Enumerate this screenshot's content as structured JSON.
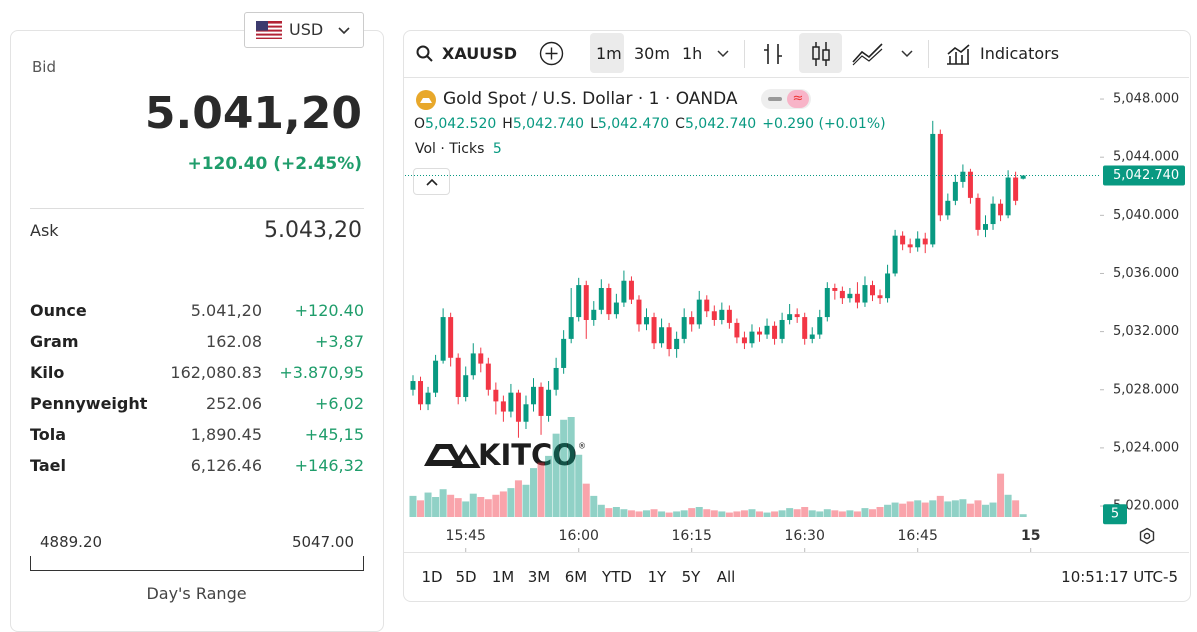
{
  "currency": "USD",
  "quote": {
    "bid_label": "Bid",
    "bid": "5.041,20",
    "change": "+120.40 (+2.45%)",
    "ask_label": "Ask",
    "ask": "5.043,20"
  },
  "units": [
    [
      "Ounce",
      "5.041,20",
      "+120.40"
    ],
    [
      "Gram",
      "162.08",
      "+3,87"
    ],
    [
      "Kilo",
      "162,080.83",
      "+3.870,95"
    ],
    [
      "Pennyweight",
      "252.06",
      "+6,02"
    ],
    [
      "Tola",
      "1,890.45",
      "+45,15"
    ],
    [
      "Tael",
      "6,126.46",
      "+146,32"
    ]
  ],
  "range": {
    "low": "4889.20",
    "high": "5047.00",
    "label": "Day's Range"
  },
  "toolbar": {
    "symbol": "XAUUSD",
    "intervals": [
      "1m",
      "30m",
      "1h"
    ],
    "indicators": "Indicators"
  },
  "legend": {
    "title": "Gold Spot / U.S. Dollar · 1 · OANDA",
    "ohlc": [
      [
        "O",
        "5,042.520"
      ],
      [
        "H",
        "5,042.740"
      ],
      [
        "L",
        "5,042.470"
      ],
      [
        "C",
        "5,042.740"
      ]
    ],
    "change": "+0.290 (+0.01%)",
    "volume_label": "Vol · Ticks",
    "volume": "5"
  },
  "watermark": "KITCO",
  "periods": [
    "1D",
    "5D",
    "1M",
    "3M",
    "6M",
    "YTD",
    "1Y",
    "5Y",
    "All"
  ],
  "clock": "10:51:17 UTC-5",
  "chart_data": {
    "type": "candlestick",
    "open": [
      5028.0,
      5028.6,
      5027.0,
      5027.8,
      5030.0,
      5033.0,
      5030.2,
      5027.5,
      5029.0,
      5030.5,
      5029.8,
      5028.0,
      5027.2,
      5026.5,
      5027.8,
      5025.8,
      5027.0,
      5028.2,
      5026.2,
      5028.0,
      5029.5,
      5031.5,
      5033.0,
      5035.2,
      5032.8,
      5033.5,
      5035.0,
      5033.2,
      5034.0,
      5035.5,
      5034.2,
      5032.5,
      5033.0,
      5031.2,
      5032.3,
      5030.8,
      5031.5,
      5033.0,
      5032.5,
      5034.2,
      5033.4,
      5032.8,
      5033.5,
      5032.6,
      5031.6,
      5031.2,
      5032.0,
      5031.8,
      5032.4,
      5031.5,
      5032.8,
      5033.2,
      5033.0,
      5031.5,
      5031.8,
      5033.0,
      5035.0,
      5034.8,
      5034.3,
      5034.6,
      5034.0,
      5035.2,
      5034.5,
      5034.3,
      5036.0,
      5038.6,
      5038.0,
      5037.8,
      5038.4,
      5038.0,
      5045.6,
      5040.0,
      5041.0,
      5042.3,
      5043.0,
      5041.2,
      5039.0,
      5039.4,
      5040.8,
      5040.0,
      5042.6,
      5042.52
    ],
    "high": [
      5029.0,
      5028.9,
      5028.2,
      5030.4,
      5033.6,
      5033.3,
      5030.5,
      5029.6,
      5031.2,
      5030.9,
      5030.2,
      5028.5,
      5027.6,
      5028.4,
      5028.0,
      5027.6,
      5028.8,
      5028.5,
      5028.6,
      5030.2,
      5032.1,
      5035.0,
      5035.7,
      5035.5,
      5034.1,
      5035.6,
      5035.3,
      5034.6,
      5036.2,
      5035.8,
      5034.5,
      5033.6,
      5033.3,
      5032.9,
      5032.6,
      5032.0,
      5033.6,
      5033.4,
      5034.8,
      5034.5,
      5033.8,
      5034.0,
      5033.8,
      5032.9,
      5032.0,
      5032.5,
      5032.3,
      5032.9,
      5032.7,
      5033.3,
      5033.9,
      5033.6,
      5033.3,
      5032.3,
      5033.5,
      5035.4,
      5035.3,
      5035.1,
      5035.0,
      5035.4,
      5035.8,
      5035.5,
      5034.9,
      5036.6,
      5039.0,
      5038.9,
      5038.4,
      5038.9,
      5038.8,
      5046.5,
      5045.9,
      5041.5,
      5042.8,
      5043.5,
      5043.2,
      5041.5,
      5040.0,
      5041.3,
      5041.1,
      5043.1,
      5043.0,
      5042.74
    ],
    "low": [
      5027.6,
      5026.6,
      5026.6,
      5027.5,
      5029.8,
      5029.6,
      5027.0,
      5027.2,
      5028.7,
      5029.2,
      5027.6,
      5026.3,
      5025.8,
      5026.1,
      5024.7,
      5025.3,
      5026.5,
      5024.9,
      5025.8,
      5027.6,
      5029.1,
      5031.2,
      5032.7,
      5031.5,
      5032.4,
      5033.2,
      5032.8,
      5032.9,
      5033.7,
      5033.9,
      5032.0,
      5032.1,
      5030.8,
      5030.9,
      5030.3,
      5030.2,
      5031.2,
      5032.0,
      5032.2,
      5033.0,
      5032.4,
      5032.5,
      5032.2,
      5031.2,
      5030.8,
      5030.9,
      5031.3,
      5031.5,
      5031.1,
      5031.2,
      5032.5,
      5032.6,
      5031.1,
      5031.2,
      5031.5,
      5032.7,
      5034.2,
      5033.9,
      5034.0,
      5033.6,
      5033.7,
      5034.1,
      5033.9,
      5034.0,
      5035.8,
      5037.6,
      5037.4,
      5037.5,
      5037.4,
      5037.8,
      5039.6,
      5039.7,
      5040.7,
      5041.9,
      5040.8,
      5038.6,
      5038.5,
      5039.0,
      5039.6,
      5039.8,
      5040.7,
      5042.47
    ],
    "close": [
      5028.6,
      5027.0,
      5027.8,
      5030.0,
      5033.0,
      5030.2,
      5027.5,
      5029.0,
      5030.5,
      5029.8,
      5028.0,
      5027.2,
      5026.5,
      5027.8,
      5025.8,
      5027.0,
      5028.2,
      5026.2,
      5028.0,
      5029.5,
      5031.5,
      5033.0,
      5035.2,
      5032.8,
      5033.5,
      5035.0,
      5033.2,
      5034.0,
      5035.5,
      5034.2,
      5032.5,
      5033.0,
      5031.2,
      5032.3,
      5030.8,
      5031.5,
      5033.0,
      5032.5,
      5034.2,
      5033.4,
      5032.8,
      5033.5,
      5032.6,
      5031.6,
      5031.2,
      5032.0,
      5031.8,
      5032.4,
      5031.5,
      5032.8,
      5033.2,
      5033.0,
      5031.5,
      5031.8,
      5033.0,
      5035.0,
      5034.8,
      5034.3,
      5034.6,
      5034.0,
      5035.2,
      5034.5,
      5034.3,
      5036.0,
      5038.6,
      5038.0,
      5037.8,
      5038.4,
      5038.0,
      5045.6,
      5040.0,
      5041.0,
      5042.3,
      5043.0,
      5041.2,
      5039.0,
      5039.4,
      5040.8,
      5040.0,
      5042.6,
      5041.0,
      5042.74
    ],
    "volume": [
      38,
      30,
      44,
      36,
      50,
      40,
      34,
      28,
      42,
      36,
      32,
      40,
      46,
      52,
      66,
      58,
      88,
      98,
      110,
      150,
      175,
      180,
      112,
      60,
      38,
      22,
      16,
      18,
      14,
      12,
      10,
      12,
      14,
      10,
      8,
      10,
      12,
      16,
      18,
      14,
      12,
      10,
      8,
      10,
      12,
      14,
      10,
      8,
      10,
      12,
      16,
      14,
      18,
      12,
      10,
      14,
      12,
      10,
      12,
      10,
      16,
      14,
      18,
      22,
      26,
      24,
      28,
      30,
      26,
      30,
      38,
      28,
      30,
      32,
      24,
      30,
      22,
      26,
      78,
      40,
      30,
      5
    ],
    "last_label": "5,042.740",
    "up_color": "#089981",
    "down_color": "#f23645",
    "xlim": [
      -1.06,
      91.2
    ],
    "xticks": [
      {
        "value": 7,
        "label": "15:45"
      },
      {
        "value": 22,
        "label": "16:00"
      },
      {
        "value": 37,
        "label": "16:15"
      },
      {
        "value": 52,
        "label": "16:30"
      },
      {
        "value": 67,
        "label": "16:45"
      },
      {
        "value": 82,
        "label": "15"
      }
    ],
    "ylim": [
      5019.04,
      5049.31
    ],
    "yticks": [
      {
        "value": 5020,
        "label": "5,020.000"
      },
      {
        "value": 5024,
        "label": "5,024.000"
      },
      {
        "value": 5028,
        "label": "5,028.000"
      },
      {
        "value": 5032,
        "label": "5,032.000"
      },
      {
        "value": 5036,
        "label": "5,036.000"
      },
      {
        "value": 5040,
        "label": "5,040.000"
      },
      {
        "value": 5044,
        "label": "5,044.000"
      },
      {
        "value": 5048,
        "label": "5,048.000"
      }
    ]
  }
}
